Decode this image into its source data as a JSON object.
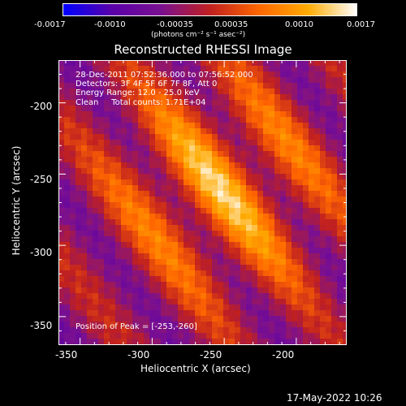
{
  "colorbar": {
    "tick_labels": [
      "-0.0017",
      "-0.0010",
      "-0.00035",
      "0.00035",
      "0.0010",
      "0.0017"
    ],
    "units_label": "(photons cm⁻² s⁻¹ asec⁻²)",
    "colormap": [
      "#0000ff",
      "#5a00a8",
      "#7a1090",
      "#c02020",
      "#ff6600",
      "#ffaa00",
      "#ffffff"
    ]
  },
  "chart_data": {
    "type": "heatmap",
    "title": "Reconstructed RHESSI Image",
    "xlabel": "Heliocentric X (arcsec)",
    "ylabel": "Heliocentric Y (arcsec)",
    "xlim": [
      -365,
      -165
    ],
    "ylim": [
      -370,
      -170
    ],
    "x_ticks": [
      -350,
      -300,
      -250,
      -200
    ],
    "y_ticks": [
      -350,
      -300,
      -250,
      -200
    ],
    "color_range": [
      -0.0017,
      0.0017
    ],
    "peak": [
      -253,
      -260
    ],
    "annotations": {
      "time": "28-Dec-2011 07:52:36.000 to 07:56:52.000",
      "detectors": "Detectors: 3F 4F 5F 6F 7F 8F, Att 0",
      "energy": "Energy Range: 12.0 - 25.0 keV",
      "clean": "Clean     Total counts: 1.71E+04",
      "peak_text": "Position of Peak = [-253,-260]"
    }
  },
  "footer": {
    "timestamp": "17-May-2022 10:26"
  }
}
